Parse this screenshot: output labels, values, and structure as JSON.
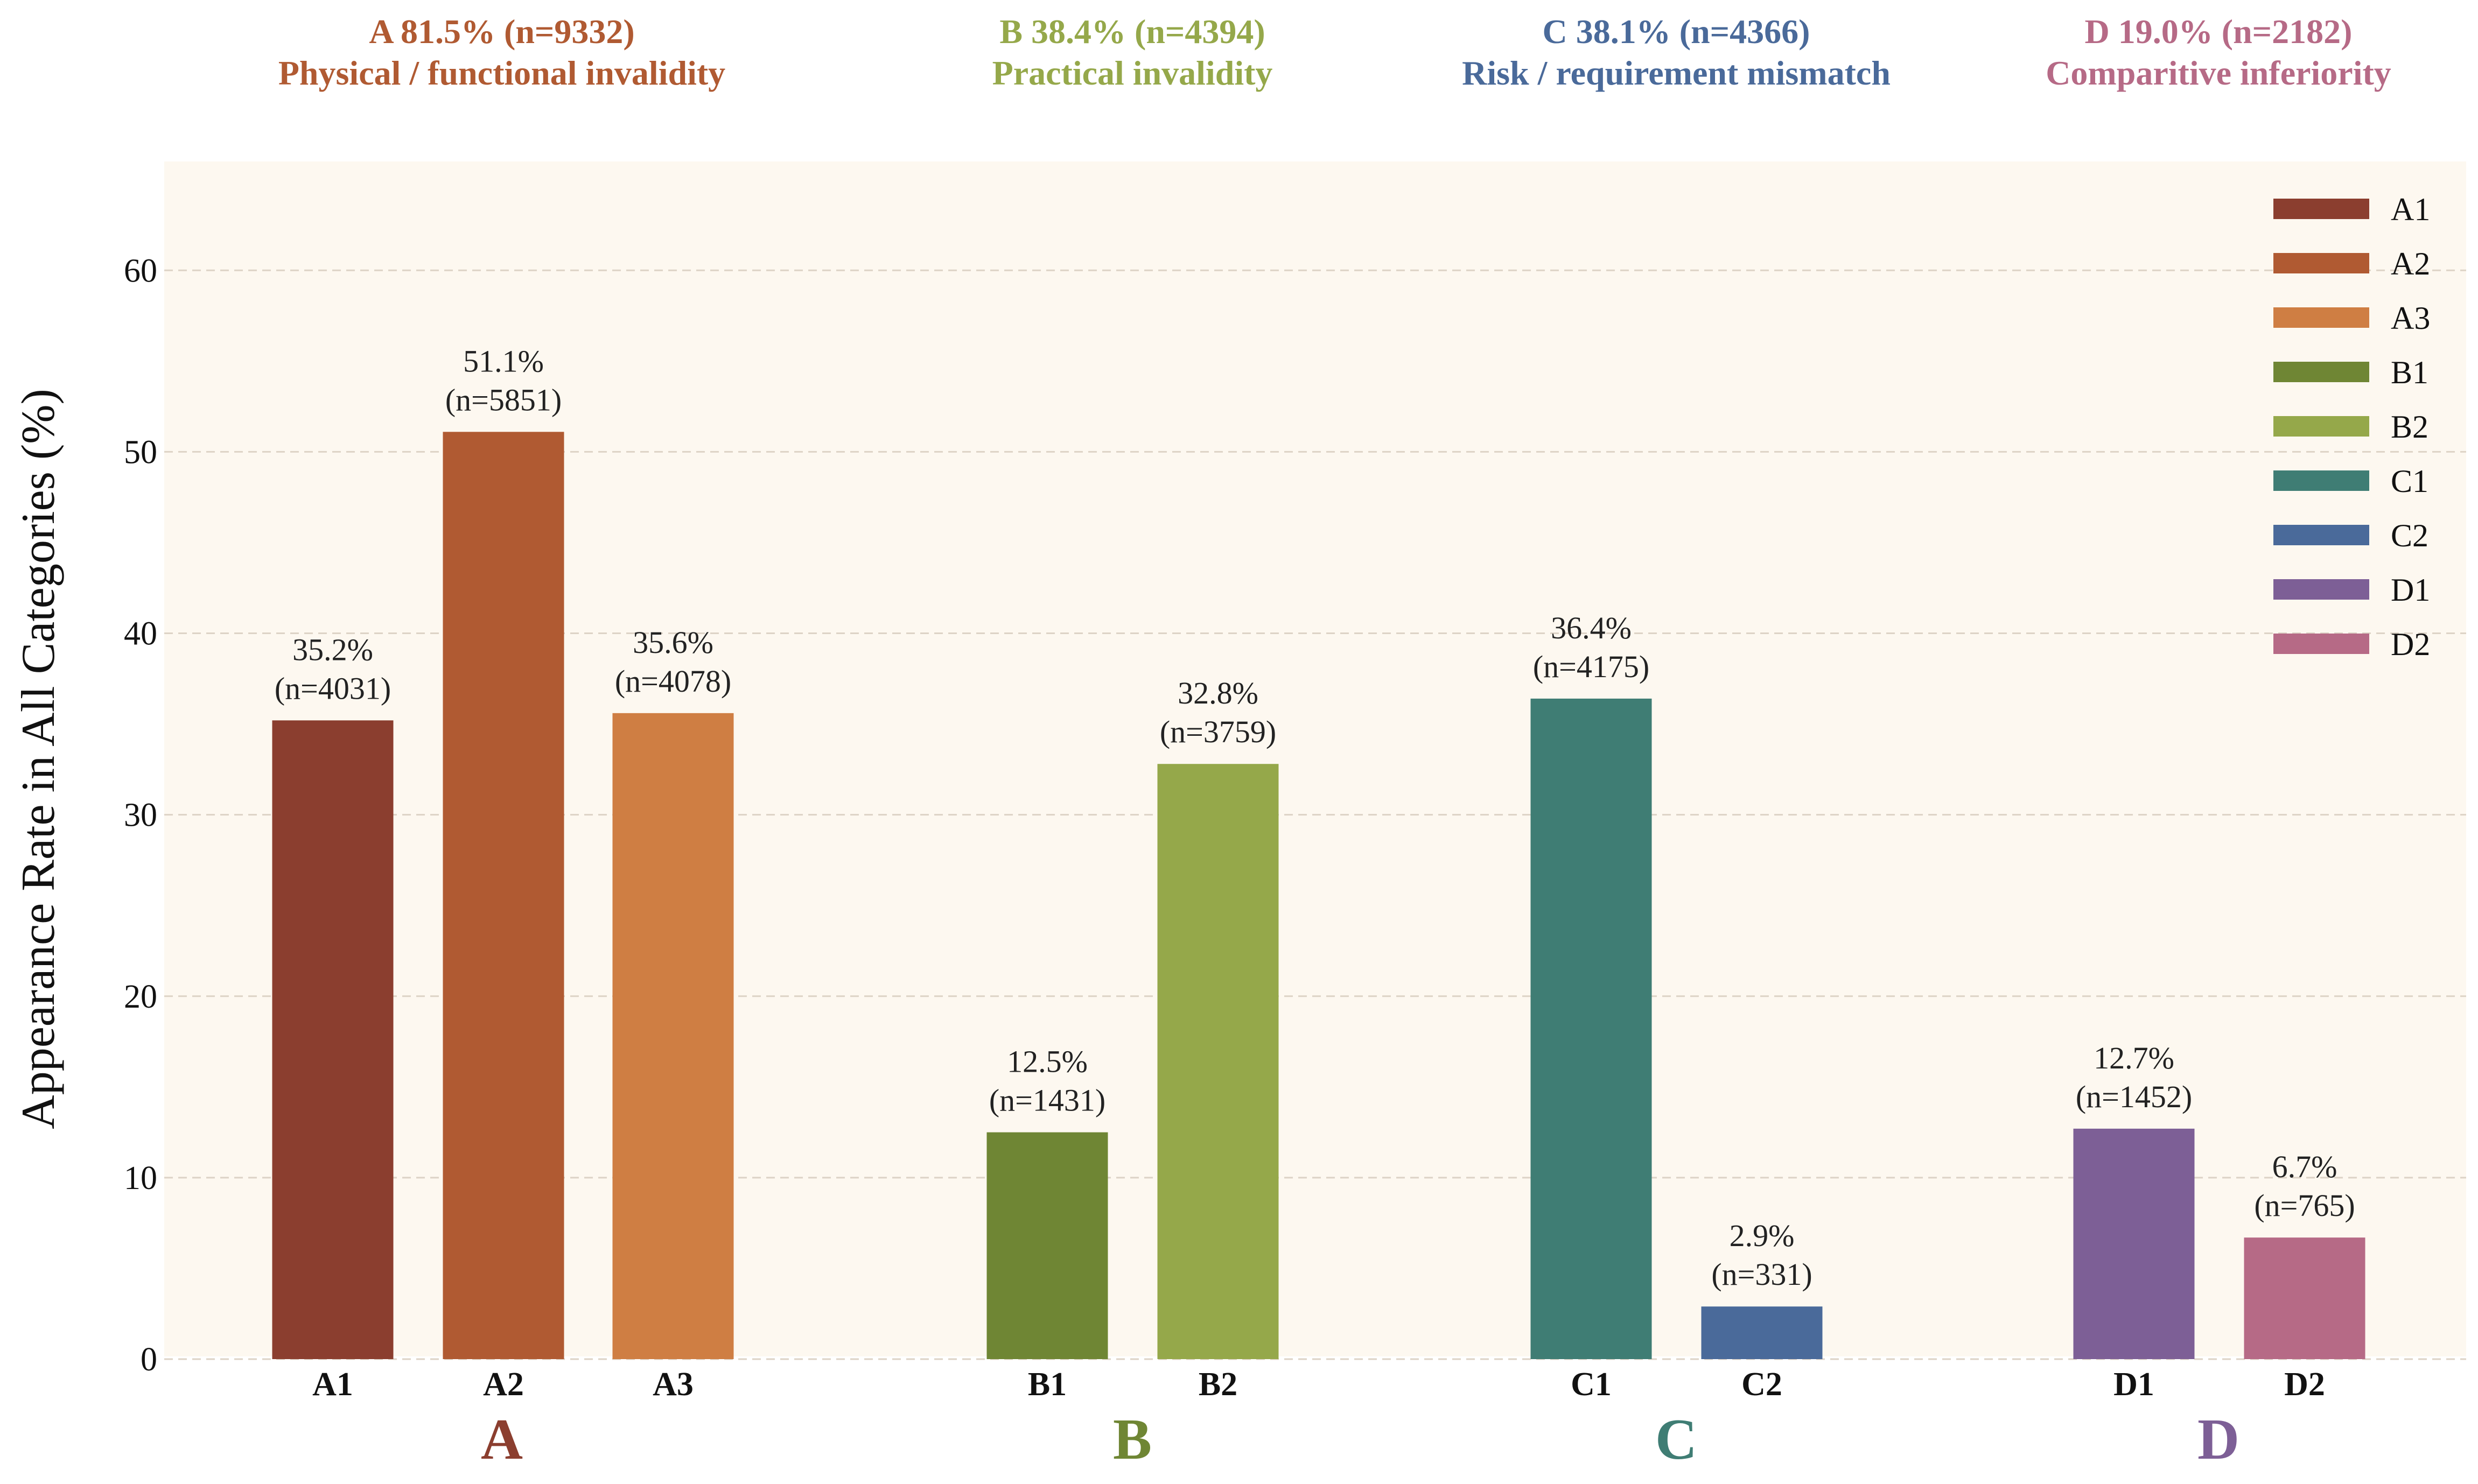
{
  "chart_data": {
    "type": "bar",
    "ylabel": "Appearance Rate in All Categories (%)",
    "xlabel": "",
    "ylim": [
      0,
      66
    ],
    "yticks": [
      0,
      10,
      20,
      30,
      40,
      50,
      60
    ],
    "grid": "horizontal dashed",
    "legend_placement": "top-right",
    "background": "#fdf8f0",
    "categories": [
      "A1",
      "A2",
      "A3",
      "B1",
      "B2",
      "C1",
      "C2",
      "D1",
      "D2"
    ],
    "values": [
      35.2,
      51.1,
      35.6,
      12.5,
      32.8,
      36.4,
      2.9,
      12.7,
      6.7
    ],
    "bars": [
      {
        "label": "A1",
        "group": "A",
        "value": 35.2,
        "pct_text": "35.2%",
        "n_text": "(n=4031)",
        "color": "#8b3e2f"
      },
      {
        "label": "A2",
        "group": "A",
        "value": 51.1,
        "pct_text": "51.1%",
        "n_text": "(n=5851)",
        "color": "#b05a32"
      },
      {
        "label": "A3",
        "group": "A",
        "value": 35.6,
        "pct_text": "35.6%",
        "n_text": "(n=4078)",
        "color": "#cf7e43"
      },
      {
        "label": "B1",
        "group": "B",
        "value": 12.5,
        "pct_text": "12.5%",
        "n_text": "(n=1431)",
        "color": "#6f8634"
      },
      {
        "label": "B2",
        "group": "B",
        "value": 32.8,
        "pct_text": "32.8%",
        "n_text": "(n=3759)",
        "color": "#95a84a"
      },
      {
        "label": "C1",
        "group": "C",
        "value": 36.4,
        "pct_text": "36.4%",
        "n_text": "(n=4175)",
        "color": "#3f7d74"
      },
      {
        "label": "C2",
        "group": "C",
        "value": 2.9,
        "pct_text": "2.9%",
        "n_text": "(n=331)",
        "color": "#4a6a9a"
      },
      {
        "label": "D1",
        "group": "D",
        "value": 12.7,
        "pct_text": "12.7%",
        "n_text": "(n=1452)",
        "color": "#7d5f96"
      },
      {
        "label": "D2",
        "group": "D",
        "value": 6.7,
        "pct_text": "6.7%",
        "n_text": "(n=765)",
        "color": "#b66a86"
      }
    ],
    "groups": [
      {
        "letter": "A",
        "summary": "A 81.5% (n=9332)",
        "name": "Physical / functional invalidity",
        "header_color": "#b05a32",
        "letter_color": "#8b3e2f"
      },
      {
        "letter": "B",
        "summary": "B 38.4% (n=4394)",
        "name": "Practical invalidity",
        "header_color": "#95a84a",
        "letter_color": "#6f8634"
      },
      {
        "letter": "C",
        "summary": "C 38.1% (n=4366)",
        "name": "Risk / requirement mismatch",
        "header_color": "#4a6a9a",
        "letter_color": "#3f7d74"
      },
      {
        "letter": "D",
        "summary": "D 19.0% (n=2182)",
        "name": "Comparitive inferiority",
        "header_color": "#b66a86",
        "letter_color": "#7d5f96"
      }
    ],
    "legend": [
      "A1",
      "A2",
      "A3",
      "B1",
      "B2",
      "C1",
      "C2",
      "D1",
      "D2"
    ]
  }
}
